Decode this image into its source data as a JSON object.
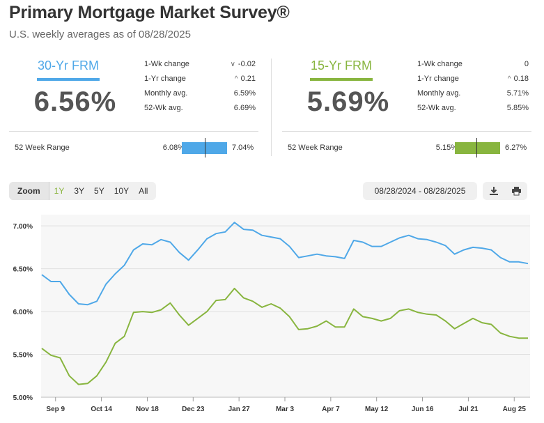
{
  "title": "Primary Mortgage Market Survey®",
  "subtitle": "U.S. weekly averages as of 08/28/2025",
  "panels": {
    "fr30": {
      "name": "30-Yr FRM",
      "rate": "6.56%",
      "color": "#4fa8e8",
      "wk_change_label": "1-Wk change",
      "wk_change_arrow": "∨",
      "wk_change": "-0.02",
      "yr_change_label": "1-Yr change",
      "yr_change_arrow": "^",
      "yr_change": "0.21",
      "monthly_label": "Monthly avg.",
      "monthly": "6.59%",
      "wk52_label": "52-Wk avg.",
      "wk52": "6.69%",
      "range_label": "52 Week Range",
      "range_low": "6.08%",
      "range_high": "7.04%",
      "range_current_fraction": 0.5
    },
    "fr15": {
      "name": "15-Yr FRM",
      "rate": "5.69%",
      "color": "#88b53f",
      "wk_change_label": "1-Wk change",
      "wk_change_arrow": "",
      "wk_change": "0",
      "yr_change_label": "1-Yr change",
      "yr_change_arrow": "^",
      "yr_change": "0.18",
      "monthly_label": "Monthly avg.",
      "monthly": "5.71%",
      "wk52_label": "52-Wk avg.",
      "wk52": "5.85%",
      "range_label": "52 Week Range",
      "range_low": "5.15%",
      "range_high": "6.27%",
      "range_current_fraction": 0.48
    }
  },
  "toolbar": {
    "zoom_label": "Zoom",
    "buttons": [
      "1Y",
      "3Y",
      "5Y",
      "10Y",
      "All"
    ],
    "active": "1Y",
    "date_range": "08/28/2024 - 08/28/2025",
    "download_icon": "download-icon",
    "print_icon": "print-icon"
  },
  "chart_data": {
    "type": "line",
    "y_tick_labels": [
      "5.00%",
      "5.50%",
      "6.00%",
      "6.50%",
      "7.00%"
    ],
    "y_ticks": [
      5.0,
      5.5,
      6.0,
      6.5,
      7.0
    ],
    "ylim": [
      5.0,
      7.05
    ],
    "x_tick_labels": [
      "Sep 9",
      "Oct 14",
      "Nov 18",
      "Dec 23",
      "Jan 27",
      "Mar 3",
      "Apr 7",
      "May 12",
      "Jun 16",
      "Jul 21",
      "Aug 25"
    ],
    "x_tick_index": [
      1.5,
      6.5,
      11.5,
      16.5,
      21.5,
      26.5,
      31.5,
      36.5,
      41.5,
      46.5,
      51.5
    ],
    "grid": true,
    "series": [
      {
        "color": "#4fa8e8",
        "values": [
          6.43,
          6.35,
          6.35,
          6.2,
          6.09,
          6.08,
          6.12,
          6.32,
          6.44,
          6.54,
          6.72,
          6.79,
          6.78,
          6.84,
          6.81,
          6.69,
          6.6,
          6.72,
          6.85,
          6.91,
          6.93,
          7.04,
          6.96,
          6.95,
          6.89,
          6.87,
          6.85,
          6.76,
          6.63,
          6.65,
          6.67,
          6.65,
          6.64,
          6.62,
          6.83,
          6.81,
          6.76,
          6.76,
          6.81,
          6.86,
          6.89,
          6.85,
          6.84,
          6.81,
          6.77,
          6.67,
          6.72,
          6.75,
          6.74,
          6.72,
          6.63,
          6.58,
          6.58,
          6.56
        ]
      },
      {
        "color": "#88b53f",
        "values": [
          5.57,
          5.49,
          5.46,
          5.25,
          5.15,
          5.16,
          5.25,
          5.41,
          5.63,
          5.71,
          5.99,
          6.0,
          5.99,
          6.02,
          6.1,
          5.96,
          5.84,
          5.92,
          6.0,
          6.13,
          6.14,
          6.27,
          6.16,
          6.12,
          6.05,
          6.09,
          6.04,
          5.94,
          5.79,
          5.8,
          5.83,
          5.89,
          5.82,
          5.82,
          6.03,
          5.94,
          5.92,
          5.89,
          5.92,
          6.01,
          6.03,
          5.99,
          5.97,
          5.96,
          5.89,
          5.8,
          5.86,
          5.92,
          5.87,
          5.85,
          5.75,
          5.71,
          5.69,
          5.69
        ]
      }
    ]
  }
}
